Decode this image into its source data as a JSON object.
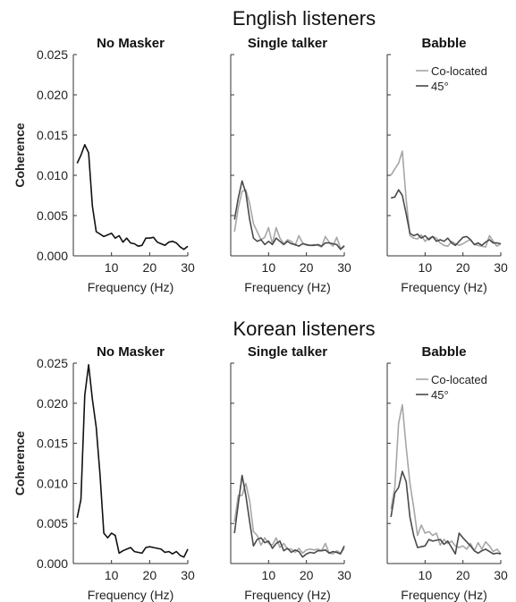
{
  "colors": {
    "co_located": "#a6a6a6",
    "deg45": "#4a4a4a",
    "single": "#111111",
    "axis": "#333333"
  },
  "chart_data": [
    {
      "group": "English listeners",
      "type": "line",
      "ylabel": "Coherence",
      "ylim": [
        0,
        0.025
      ],
      "yticks": [
        "0.000",
        "0.005",
        "0.010",
        "0.015",
        "0.020",
        "0.025"
      ],
      "xlim": [
        0,
        30
      ],
      "xticks": [
        "10",
        "20",
        "30"
      ],
      "xlabel": "Frequency (Hz)",
      "legend_position": "top-right (Babble panel)",
      "panels": [
        {
          "title": "No Masker",
          "series": [
            {
              "key": "single",
              "x": [
                1,
                2,
                3,
                4,
                5,
                6,
                7,
                8,
                9,
                10,
                11,
                12,
                13,
                14,
                15,
                16,
                17,
                18,
                19,
                20,
                21,
                22,
                23,
                24,
                25,
                26,
                27,
                28,
                29,
                30
              ],
              "y": [
                0.0115,
                0.0125,
                0.0138,
                0.0128,
                0.0062,
                0.003,
                0.0027,
                0.0024,
                0.0026,
                0.0028,
                0.0022,
                0.0025,
                0.0017,
                0.0022,
                0.0016,
                0.0015,
                0.0012,
                0.0013,
                0.0022,
                0.0022,
                0.0023,
                0.0017,
                0.0015,
                0.0013,
                0.0017,
                0.0018,
                0.0016,
                0.0011,
                0.0008,
                0.0012
              ]
            }
          ]
        },
        {
          "title": "Single talker",
          "series": [
            {
              "key": "co_located",
              "x": [
                1,
                2,
                3,
                4,
                5,
                6,
                7,
                8,
                9,
                10,
                11,
                12,
                13,
                14,
                15,
                16,
                17,
                18,
                19,
                20,
                21,
                22,
                23,
                24,
                25,
                26,
                27,
                28,
                29,
                30
              ],
              "y": [
                0.003,
                0.006,
                0.008,
                0.0082,
                0.0065,
                0.004,
                0.003,
                0.002,
                0.0023,
                0.0035,
                0.0015,
                0.0035,
                0.0022,
                0.0015,
                0.002,
                0.0018,
                0.0013,
                0.0025,
                0.0016,
                0.0013,
                0.0013,
                0.0014,
                0.0013,
                0.0011,
                0.0024,
                0.0017,
                0.0012,
                0.0023,
                0.0009,
                0.0013
              ]
            },
            {
              "key": "deg45",
              "x": [
                1,
                2,
                3,
                4,
                5,
                6,
                7,
                8,
                9,
                10,
                11,
                12,
                13,
                14,
                15,
                16,
                17,
                18,
                19,
                20,
                21,
                22,
                23,
                24,
                25,
                26,
                27,
                28,
                29,
                30
              ],
              "y": [
                0.0045,
                0.0072,
                0.0093,
                0.0078,
                0.0045,
                0.0022,
                0.0018,
                0.002,
                0.0014,
                0.0018,
                0.0014,
                0.0022,
                0.0018,
                0.0014,
                0.0018,
                0.0015,
                0.0014,
                0.0012,
                0.0015,
                0.0014,
                0.0013,
                0.0013,
                0.0014,
                0.0012,
                0.0016,
                0.0016,
                0.0015,
                0.0014,
                0.0008,
                0.0012
              ]
            }
          ]
        },
        {
          "title": "Babble",
          "legend": [
            "Co-located",
            "45°"
          ],
          "series": [
            {
              "key": "co_located",
              "x": [
                1,
                2,
                3,
                4,
                5,
                6,
                7,
                8,
                9,
                10,
                11,
                12,
                13,
                14,
                15,
                16,
                17,
                18,
                19,
                20,
                21,
                22,
                23,
                24,
                25,
                26,
                27,
                28,
                29,
                30
              ],
              "y": [
                0.01,
                0.0108,
                0.0115,
                0.013,
                0.007,
                0.0025,
                0.0022,
                0.0021,
                0.0026,
                0.0018,
                0.0022,
                0.0024,
                0.0022,
                0.0016,
                0.0013,
                0.0012,
                0.0018,
                0.0015,
                0.0013,
                0.0015,
                0.0018,
                0.002,
                0.0014,
                0.0013,
                0.0012,
                0.0011,
                0.0025,
                0.0018,
                0.0012,
                0.0015
              ]
            },
            {
              "key": "deg45",
              "x": [
                1,
                2,
                3,
                4,
                5,
                6,
                7,
                8,
                9,
                10,
                11,
                12,
                13,
                14,
                15,
                16,
                17,
                18,
                19,
                20,
                21,
                22,
                23,
                24,
                25,
                26,
                27,
                28,
                29,
                30
              ],
              "y": [
                0.0072,
                0.0073,
                0.0082,
                0.0075,
                0.0052,
                0.0028,
                0.0025,
                0.0027,
                0.0022,
                0.0025,
                0.002,
                0.0024,
                0.0018,
                0.002,
                0.0018,
                0.0022,
                0.0016,
                0.0013,
                0.0018,
                0.0023,
                0.0024,
                0.002,
                0.0014,
                0.0016,
                0.0013,
                0.0017,
                0.002,
                0.0016,
                0.0016,
                0.0015
              ]
            }
          ]
        }
      ]
    },
    {
      "group": "Korean listeners",
      "type": "line",
      "ylabel": "Coherence",
      "ylim": [
        0,
        0.025
      ],
      "yticks": [
        "0.000",
        "0.005",
        "0.010",
        "0.015",
        "0.020",
        "0.025"
      ],
      "xlim": [
        0,
        30
      ],
      "xticks": [
        "10",
        "20",
        "30"
      ],
      "xlabel": "Frequency (Hz)",
      "legend_position": "top-right (Babble panel)",
      "panels": [
        {
          "title": "No Masker",
          "series": [
            {
              "key": "single",
              "x": [
                1,
                2,
                3,
                4,
                5,
                6,
                7,
                8,
                9,
                10,
                11,
                12,
                13,
                14,
                15,
                16,
                17,
                18,
                19,
                20,
                21,
                22,
                23,
                24,
                25,
                26,
                27,
                28,
                29,
                30
              ],
              "y": [
                0.0057,
                0.008,
                0.021,
                0.0248,
                0.0205,
                0.017,
                0.011,
                0.0038,
                0.0032,
                0.0038,
                0.0035,
                0.0013,
                0.0016,
                0.0018,
                0.002,
                0.0015,
                0.0014,
                0.0013,
                0.002,
                0.0021,
                0.002,
                0.0019,
                0.0018,
                0.0014,
                0.0015,
                0.0012,
                0.0015,
                0.001,
                0.0008,
                0.0018
              ]
            }
          ]
        },
        {
          "title": "Single talker",
          "series": [
            {
              "key": "co_located",
              "x": [
                1,
                2,
                3,
                4,
                5,
                6,
                7,
                8,
                9,
                10,
                11,
                12,
                13,
                14,
                15,
                16,
                17,
                18,
                19,
                20,
                21,
                22,
                23,
                24,
                25,
                26,
                27,
                28,
                29,
                30
              ],
              "y": [
                0.0052,
                0.0085,
                0.0085,
                0.01,
                0.0078,
                0.004,
                0.0035,
                0.0023,
                0.0032,
                0.0025,
                0.0023,
                0.0032,
                0.002,
                0.0025,
                0.0018,
                0.0018,
                0.0014,
                0.0019,
                0.0013,
                0.0017,
                0.0018,
                0.0017,
                0.0018,
                0.0016,
                0.0025,
                0.0013,
                0.0012,
                0.0016,
                0.0013,
                0.0019
              ]
            },
            {
              "key": "deg45",
              "x": [
                1,
                2,
                3,
                4,
                5,
                6,
                7,
                8,
                9,
                10,
                11,
                12,
                13,
                14,
                15,
                16,
                17,
                18,
                19,
                20,
                21,
                22,
                23,
                24,
                25,
                26,
                27,
                28,
                29,
                30
              ],
              "y": [
                0.0038,
                0.0075,
                0.011,
                0.0085,
                0.0052,
                0.0022,
                0.003,
                0.0032,
                0.0026,
                0.0028,
                0.0019,
                0.0025,
                0.0028,
                0.0016,
                0.0019,
                0.0014,
                0.0017,
                0.0015,
                0.0008,
                0.0012,
                0.0014,
                0.0013,
                0.0016,
                0.0016,
                0.0017,
                0.0013,
                0.0015,
                0.0014,
                0.0012,
                0.0022
              ]
            }
          ]
        },
        {
          "title": "Babble",
          "legend": [
            "Co-located",
            "45°"
          ],
          "series": [
            {
              "key": "co_located",
              "x": [
                1,
                2,
                3,
                4,
                5,
                6,
                7,
                8,
                9,
                10,
                11,
                12,
                13,
                14,
                15,
                16,
                17,
                18,
                19,
                20,
                21,
                22,
                23,
                24,
                25,
                26,
                27,
                28,
                29,
                30
              ],
              "y": [
                0.0068,
                0.0095,
                0.0175,
                0.0198,
                0.0145,
                0.01,
                0.007,
                0.0035,
                0.0048,
                0.0038,
                0.004,
                0.0035,
                0.0038,
                0.0023,
                0.003,
                0.0025,
                0.0028,
                0.0022,
                0.002,
                0.0022,
                0.0018,
                0.0025,
                0.0016,
                0.0026,
                0.0018,
                0.0027,
                0.0022,
                0.0015,
                0.0018,
                0.0012
              ]
            },
            {
              "key": "deg45",
              "x": [
                1,
                2,
                3,
                4,
                5,
                6,
                7,
                8,
                9,
                10,
                11,
                12,
                13,
                14,
                15,
                16,
                17,
                18,
                19,
                20,
                21,
                22,
                23,
                24,
                25,
                26,
                27,
                28,
                29,
                30
              ],
              "y": [
                0.0058,
                0.0088,
                0.0095,
                0.0115,
                0.0102,
                0.0058,
                0.0035,
                0.002,
                0.0021,
                0.0022,
                0.003,
                0.0028,
                0.0029,
                0.003,
                0.0024,
                0.0028,
                0.002,
                0.0012,
                0.0038,
                0.0032,
                0.0027,
                0.0022,
                0.0016,
                0.0013,
                0.0016,
                0.0018,
                0.0015,
                0.0012,
                0.0013,
                0.0012
              ]
            }
          ]
        }
      ]
    }
  ]
}
